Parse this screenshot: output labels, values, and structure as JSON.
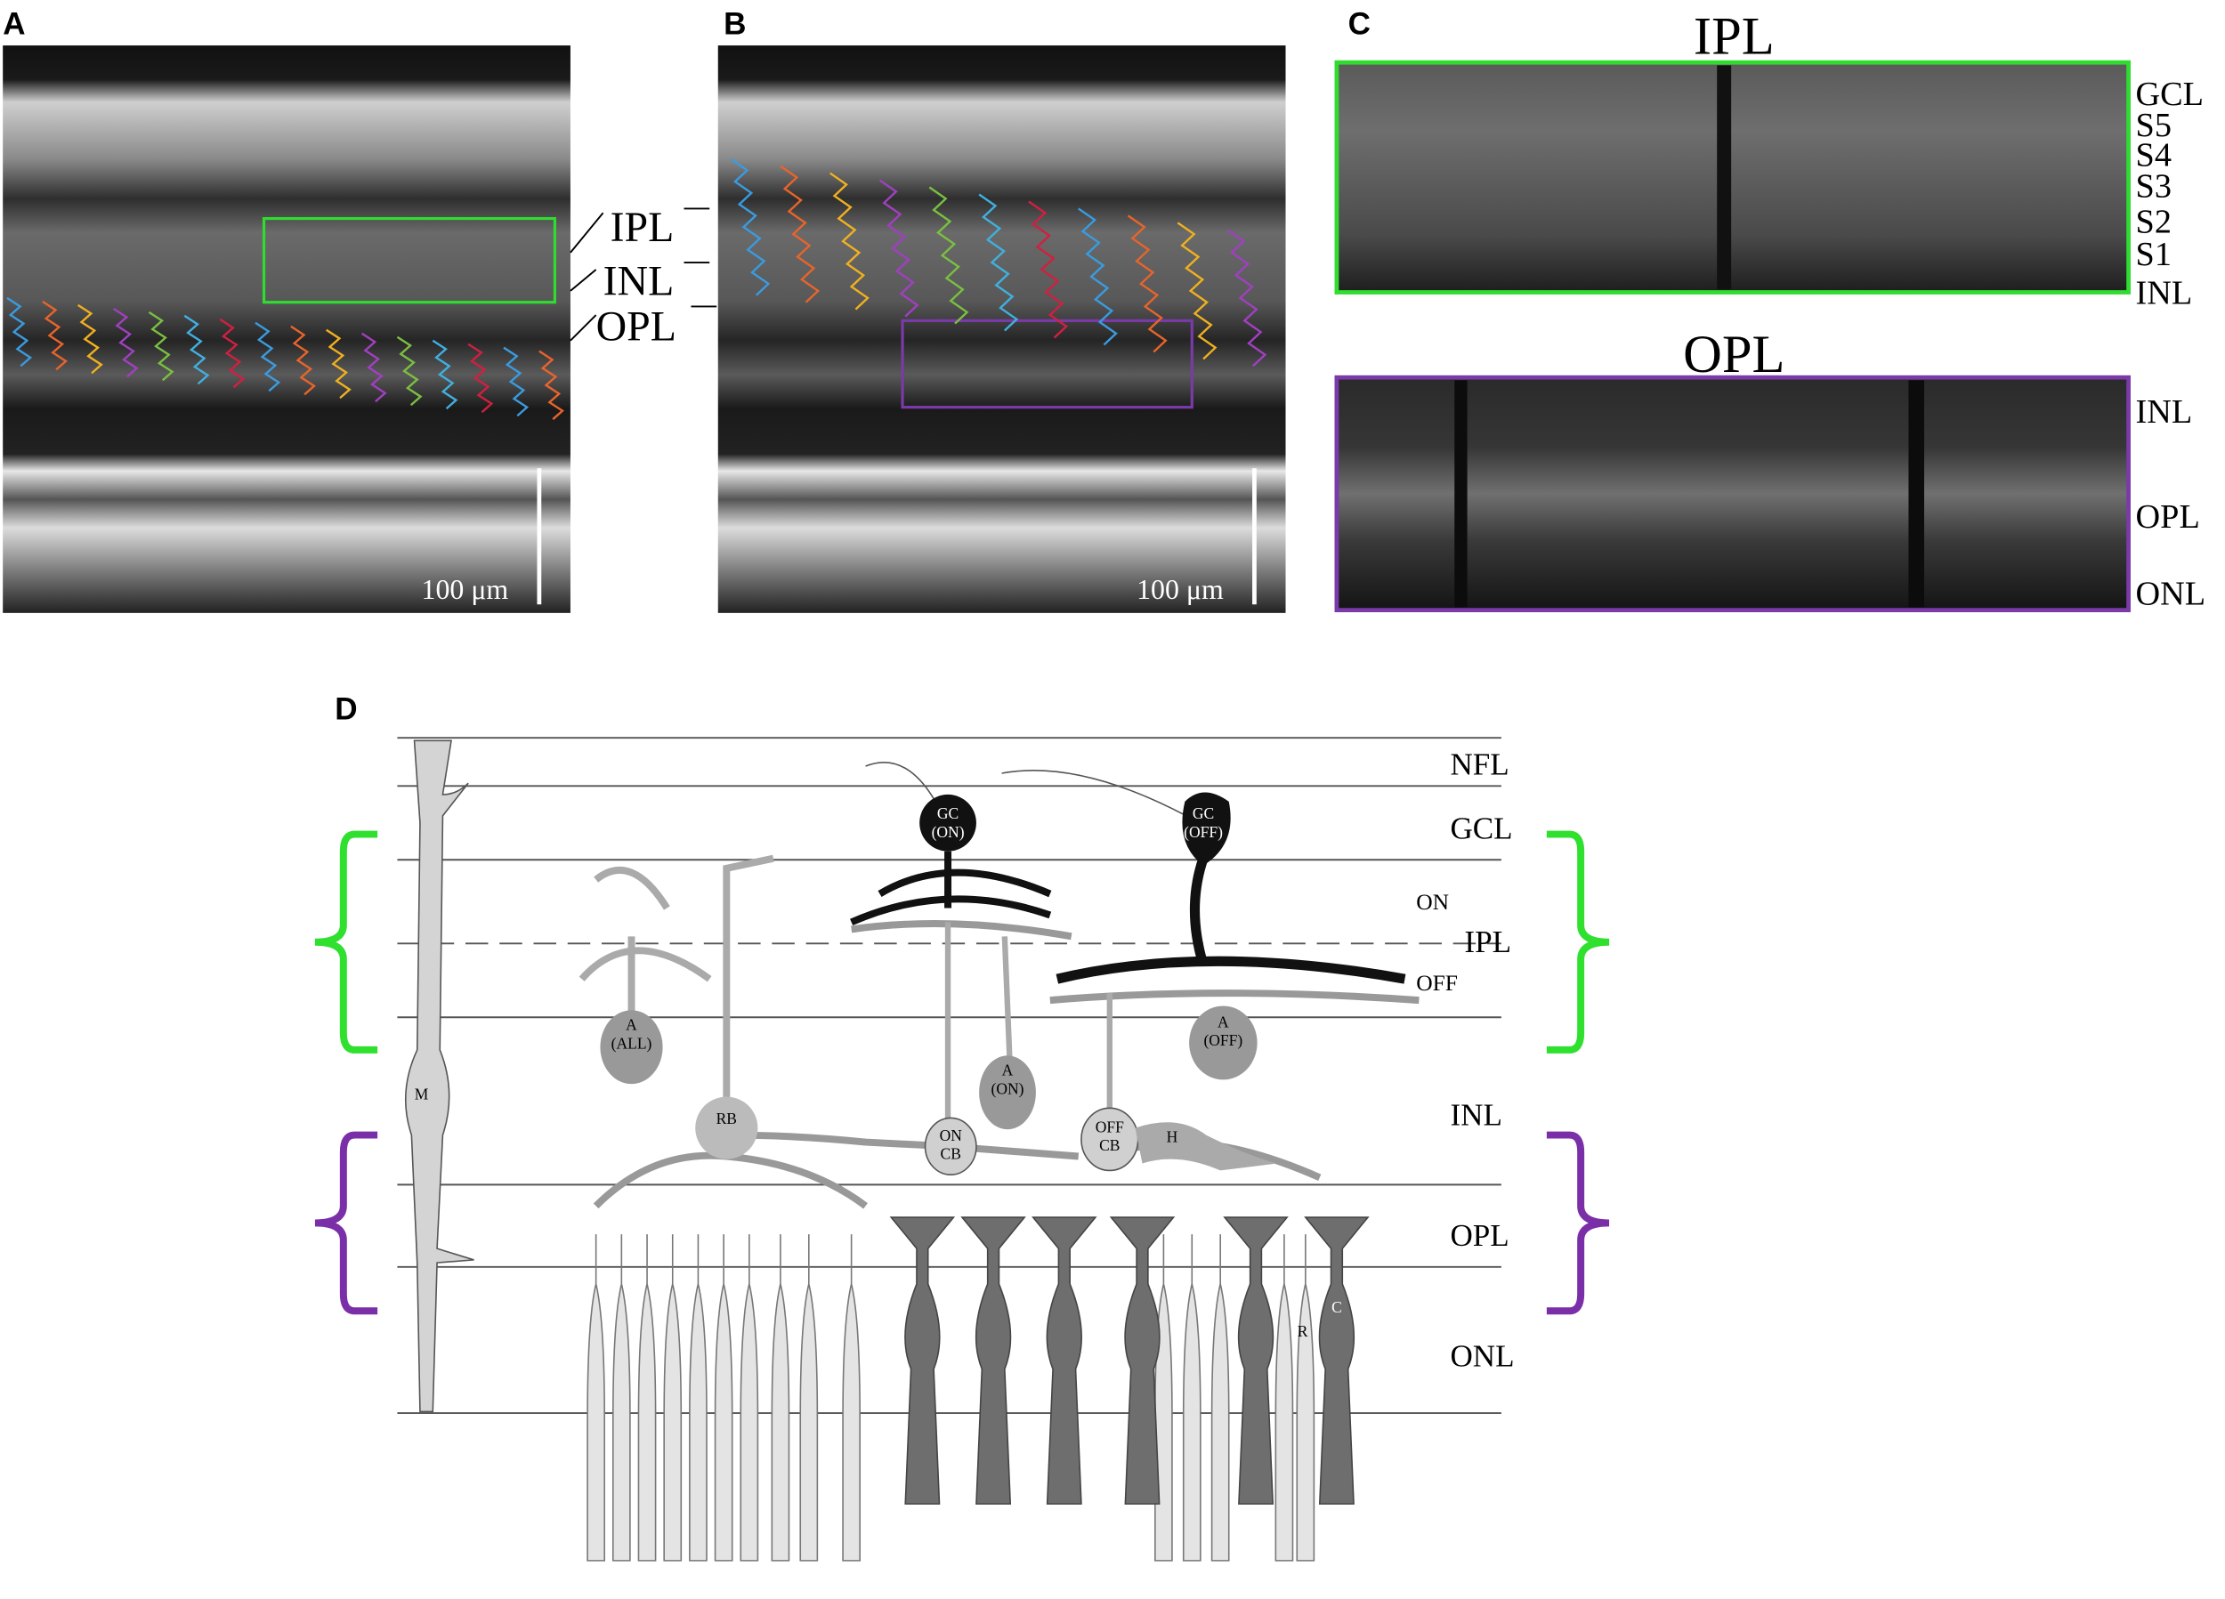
{
  "panels": {
    "a": {
      "label": "A",
      "annotations": [
        "IPL",
        "INL",
        "OPL"
      ],
      "scale_bar": "100 μm"
    },
    "b": {
      "label": "B",
      "scale_bar": "100 μm"
    },
    "c": {
      "label": "C",
      "ipl": {
        "title": "IPL",
        "layers": [
          "GCL",
          "S5",
          "S4",
          "S3",
          "S2",
          "S1",
          "INL"
        ]
      },
      "opl": {
        "title": "OPL",
        "layers": [
          "INL",
          "OPL",
          "ONL"
        ]
      }
    },
    "d": {
      "label": "D",
      "layers": [
        "NFL",
        "GCL",
        "ON",
        "IPL",
        "OFF",
        "INL",
        "OPL",
        "ONL"
      ],
      "cells": [
        {
          "lines": [
            "GC",
            "(ON)"
          ]
        },
        {
          "lines": [
            "GC",
            "(OFF)"
          ]
        },
        {
          "lines": [
            "A",
            "(ALL)"
          ]
        },
        {
          "lines": [
            "A",
            "(ON)"
          ]
        },
        {
          "lines": [
            "A",
            "(OFF)"
          ]
        },
        {
          "lines": [
            "M"
          ]
        },
        {
          "lines": [
            "RB"
          ]
        },
        {
          "lines": [
            "ON",
            "CB"
          ]
        },
        {
          "lines": [
            "OFF",
            "CB"
          ]
        },
        {
          "lines": [
            "H"
          ]
        },
        {
          "lines": [
            "R"
          ]
        },
        {
          "lines": [
            "C"
          ]
        }
      ]
    }
  }
}
